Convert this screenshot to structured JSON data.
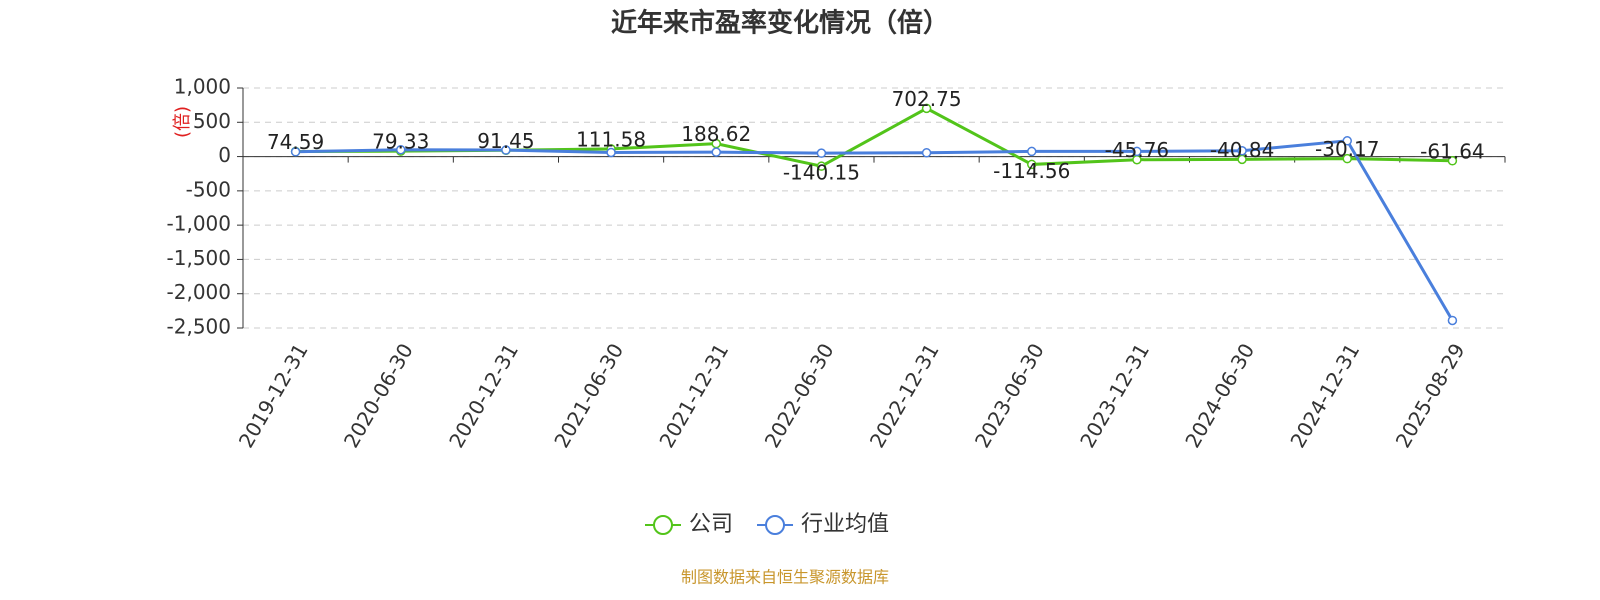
{
  "chart_data": {
    "type": "line",
    "title": "近年来市盈率变化情况（倍）",
    "y_label": "(倍)",
    "categories": [
      "2019-12-31",
      "2020-06-30",
      "2020-12-31",
      "2021-06-30",
      "2021-12-31",
      "2022-06-30",
      "2022-12-31",
      "2023-06-30",
      "2023-12-31",
      "2024-06-30",
      "2024-12-31",
      "2025-08-29"
    ],
    "series": [
      {
        "name": "公司",
        "color": "#52c41a",
        "values": [
          74.59,
          79.33,
          91.45,
          111.58,
          188.62,
          -140.15,
          702.75,
          -114.56,
          -45.76,
          -40.84,
          -30.17,
          -61.64
        ]
      },
      {
        "name": "行业均值",
        "color": "#4a7fdc",
        "values": [
          70,
          100,
          95,
          60,
          65,
          50,
          55,
          75,
          75,
          85,
          230,
          -2390
        ]
      }
    ],
    "ylim": [
      -2500,
      1000
    ],
    "yticks": [
      {
        "value": -2500,
        "label": "-2,500"
      },
      {
        "value": -2000,
        "label": "-2,000"
      },
      {
        "value": -1500,
        "label": "-1,500"
      },
      {
        "value": -1000,
        "label": "-1,000"
      },
      -500,
      0,
      500,
      {
        "value": 1000,
        "label": "1,000"
      }
    ],
    "grid": true,
    "source": "制图数据来自恒生聚源数据库"
  }
}
